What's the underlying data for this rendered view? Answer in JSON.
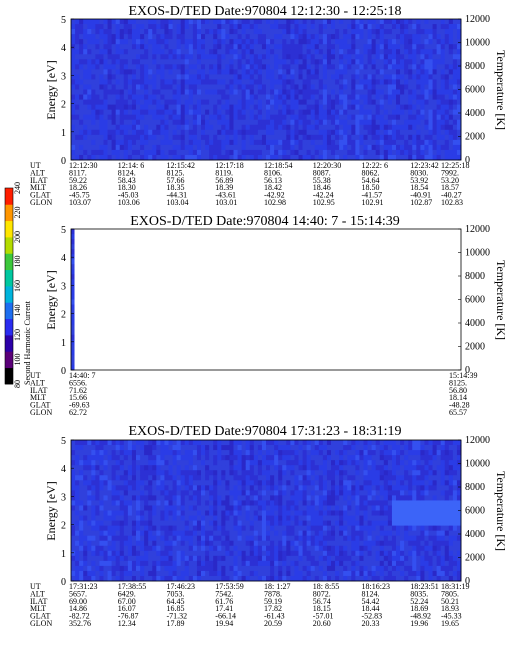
{
  "colorbar": {
    "label": "Second Harmonic Current",
    "ticks": [
      "80",
      "100",
      "120",
      "140",
      "160",
      "180",
      "200",
      "220",
      "240"
    ],
    "colors": [
      "#000000",
      "#5a0078",
      "#2c00a8",
      "#2a2cf0",
      "#1e6ef0",
      "#00b4dc",
      "#00c8a0",
      "#3cc83c",
      "#b4dc00",
      "#ffe600",
      "#ff9600",
      "#ff1e00"
    ]
  },
  "chart_data": [
    {
      "type": "heatmap",
      "title": "EXOS-D/TED   Date:970804   12:12:30 - 12:25:18",
      "ylabel": "Energy [eV]",
      "y2label": "Temperature [K]",
      "ylim": [
        0,
        5
      ],
      "yticks": [
        "0",
        "1",
        "2",
        "3",
        "4",
        "5"
      ],
      "y2lim": [
        0,
        12000
      ],
      "y2ticks": [
        "0",
        "2000",
        "4000",
        "6000",
        "8000",
        "10000",
        "12000"
      ],
      "coverage": [
        [
          0,
          1
        ]
      ],
      "ephemeris": {
        "labels": [
          "UT",
          "ALT",
          "ILAT",
          "MLT",
          "GLAT",
          "GLON"
        ],
        "columns": [
          [
            "12:12:30",
            "8117.",
            "59.22",
            "18.26",
            "-45.75",
            "103.07"
          ],
          [
            "12:14: 6",
            "8124.",
            "58.43",
            "18.30",
            "-45.03",
            "103.06"
          ],
          [
            "12:15:42",
            "8125.",
            "57.66",
            "18.35",
            "-44.31",
            "103.04"
          ],
          [
            "12:17:18",
            "8119.",
            "56.89",
            "18.39",
            "-43.61",
            "103.01"
          ],
          [
            "12:18:54",
            "8106.",
            "56.13",
            "18.42",
            "-42.92",
            "102.98"
          ],
          [
            "12:20:30",
            "8087.",
            "55.38",
            "18.46",
            "-42.24",
            "102.95"
          ],
          [
            "12:22: 6",
            "8062.",
            "54.64",
            "18.50",
            "-41.57",
            "102.91"
          ],
          [
            "12:23:42",
            "8030.",
            "53.92",
            "18.54",
            "-40.91",
            "102.87"
          ],
          [
            "12:25:18",
            "7992.",
            "53.20",
            "18.57",
            "-40.27",
            "102.83"
          ]
        ]
      }
    },
    {
      "type": "heatmap",
      "title": "EXOS-D/TED   Date:970804   14:40: 7 - 15:14:39",
      "ylabel": "Energy [eV]",
      "y2label": "Temperature [K]",
      "ylim": [
        0,
        5
      ],
      "yticks": [
        "0",
        "1",
        "2",
        "3",
        "4",
        "5"
      ],
      "y2lim": [
        0,
        12000
      ],
      "y2ticks": [
        "0",
        "2000",
        "4000",
        "6000",
        "8000",
        "10000",
        "12000"
      ],
      "coverage": [
        [
          0,
          0.008
        ]
      ],
      "ephemeris": {
        "labels": [
          "UT",
          "ALT",
          "ILAT",
          "MLT",
          "GLAT",
          "GLON"
        ],
        "columns": [
          [
            "14:40: 7",
            "6556.",
            "71.62",
            "15.66",
            "-69.63",
            "62.72"
          ],
          [
            "15:14:39",
            "8125.",
            "56.80",
            "18.14",
            "-48.28",
            "65.57"
          ]
        ]
      }
    },
    {
      "type": "heatmap",
      "title": "EXOS-D/TED   Date:970804   17:31:23 - 18:31:19",
      "ylabel": "Energy [eV]",
      "y2label": "Temperature [K]",
      "ylim": [
        0,
        5
      ],
      "yticks": [
        "0",
        "1",
        "2",
        "3",
        "4",
        "5"
      ],
      "y2lim": [
        0,
        12000
      ],
      "y2ticks": [
        "0",
        "2000",
        "4000",
        "6000",
        "8000",
        "10000",
        "12000"
      ],
      "coverage": [
        [
          0,
          0.105
        ],
        [
          0.118,
          1
        ]
      ],
      "ephemeris": {
        "labels": [
          "UT",
          "ALT",
          "ILAT",
          "MLT",
          "GLAT",
          "GLON"
        ],
        "columns": [
          [
            "17:31:23",
            "5657.",
            "69.00",
            "14.86",
            "-82.72",
            "352.76"
          ],
          [
            "17:38:55",
            "6429.",
            "67.00",
            "16.07",
            "-76.87",
            "12.34"
          ],
          [
            "17:46:23",
            "7053.",
            "64.45",
            "16.85",
            "-71.32",
            "17.89"
          ],
          [
            "17:53:59",
            "7542.",
            "61.76",
            "17.41",
            "-66.14",
            "19.94"
          ],
          [
            "18: 1:27",
            "7878.",
            "59.19",
            "17.82",
            "-61.43",
            "20.59"
          ],
          [
            "18: 8:55",
            "8072.",
            "56.74",
            "18.15",
            "-57.01",
            "20.60"
          ],
          [
            "18:16:23",
            "8124.",
            "54.42",
            "18.44",
            "-52.83",
            "20.33"
          ],
          [
            "18:23:51",
            "8035.",
            "52.24",
            "18.69",
            "-48.92",
            "19.96"
          ],
          [
            "18:31:19",
            "7805.",
            "50.21",
            "18.93",
            "-45.33",
            "19.65"
          ]
        ]
      }
    }
  ]
}
